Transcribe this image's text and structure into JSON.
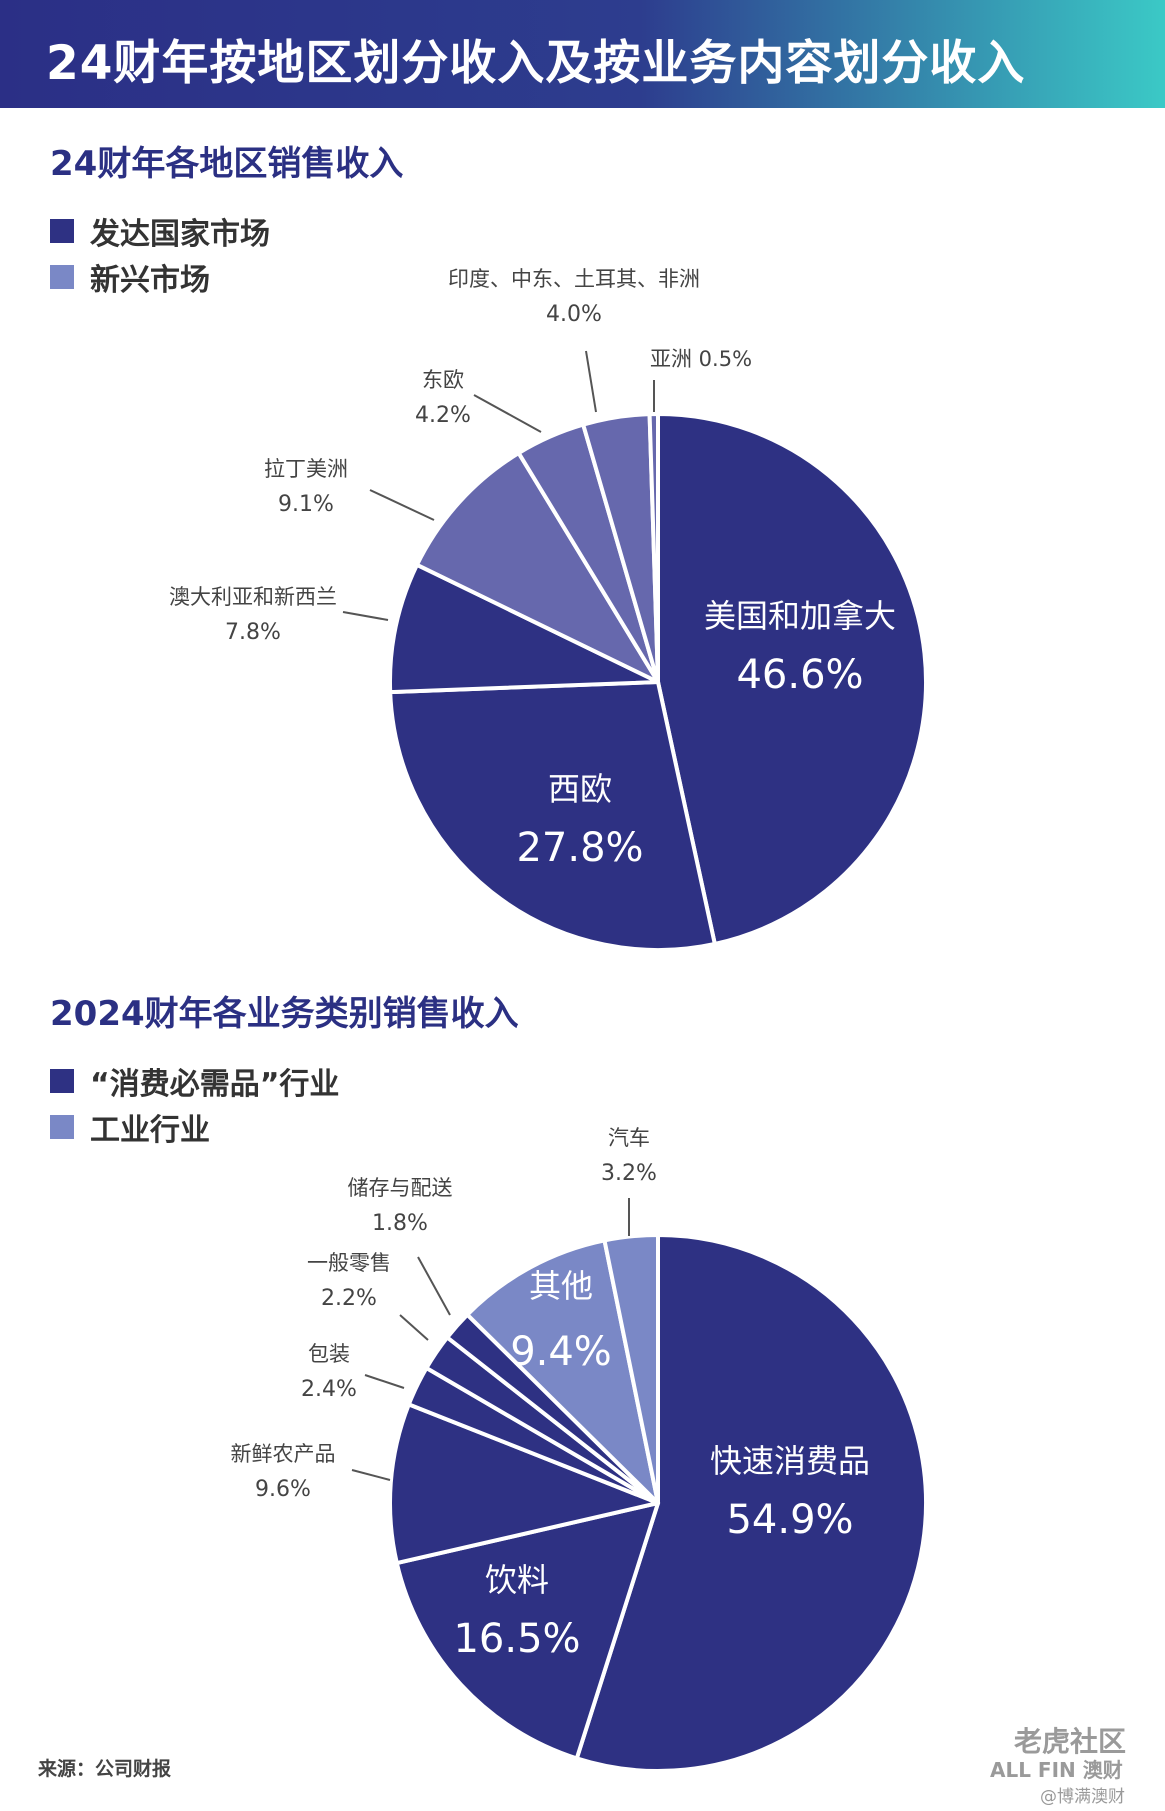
{
  "header": {
    "title": "24财年按地区划分收入及按业务内容划分收入"
  },
  "colors": {
    "developed": "#2e3183",
    "emerging": "#7a88c6",
    "emerging_dark": "#6668ad",
    "separator": "#ffffff"
  },
  "chart_data": [
    {
      "type": "pie",
      "title": "24财年各地区销售收入",
      "legend": [
        {
          "label": "发达国家市场",
          "color": "#2e3183"
        },
        {
          "label": "新兴市场",
          "color": "#7a88c6"
        }
      ],
      "slices": [
        {
          "name": "美国和加拿大",
          "pct_label": "46.6%",
          "value": 46.6,
          "color": "#2e3183",
          "label_inside": true
        },
        {
          "name": "西欧",
          "pct_label": "27.8%",
          "value": 27.8,
          "color": "#2e3183",
          "label_inside": true
        },
        {
          "name": "澳大利亚和新西兰",
          "pct_label": "7.8%",
          "value": 7.8,
          "color": "#2e3183",
          "label_inside": false
        },
        {
          "name": "拉丁美洲",
          "pct_label": "9.1%",
          "value": 9.1,
          "color": "#6668ad",
          "label_inside": false
        },
        {
          "name": "东欧",
          "pct_label": "4.2%",
          "value": 4.2,
          "color": "#6668ad",
          "label_inside": false
        },
        {
          "name": "印度、中东、土耳其、非洲",
          "pct_label": "4.0%",
          "value": 4.0,
          "color": "#6668ad",
          "label_inside": false
        },
        {
          "name": "亚洲",
          "pct_label": "0.5%",
          "value": 0.5,
          "color": "#6668ad",
          "label_inside": false
        }
      ]
    },
    {
      "type": "pie",
      "title": "2024财年各业务类别销售收入",
      "legend": [
        {
          "label": "“消费必需品”行业",
          "color": "#2e3183"
        },
        {
          "label": "工业行业",
          "color": "#7a88c6"
        }
      ],
      "slices": [
        {
          "name": "快速消费品",
          "pct_label": "54.9%",
          "value": 54.9,
          "color": "#2e3183",
          "label_inside": true
        },
        {
          "name": "饮料",
          "pct_label": "16.5%",
          "value": 16.5,
          "color": "#2e3183",
          "label_inside": true
        },
        {
          "name": "新鲜农产品",
          "pct_label": "9.6%",
          "value": 9.6,
          "color": "#2e3183",
          "label_inside": false
        },
        {
          "name": "包装",
          "pct_label": "2.4%",
          "value": 2.4,
          "color": "#2e3183",
          "label_inside": false
        },
        {
          "name": "一般零售",
          "pct_label": "2.2%",
          "value": 2.2,
          "color": "#2e3183",
          "label_inside": false
        },
        {
          "name": "储存与配送",
          "pct_label": "1.8%",
          "value": 1.8,
          "color": "#2e3183",
          "label_inside": false
        },
        {
          "name": "其他",
          "pct_label": "9.4%",
          "value": 9.4,
          "color": "#7a88c6",
          "label_inside": true
        },
        {
          "name": "汽车",
          "pct_label": "3.2%",
          "value": 3.2,
          "color": "#7a88c6",
          "label_inside": false
        }
      ]
    }
  ],
  "footer": {
    "source": "来源：公司财报",
    "watermark_community": "老虎社区",
    "watermark_brand": "ALL FIN 澳财",
    "watermark_handle": "@博满澳财"
  }
}
